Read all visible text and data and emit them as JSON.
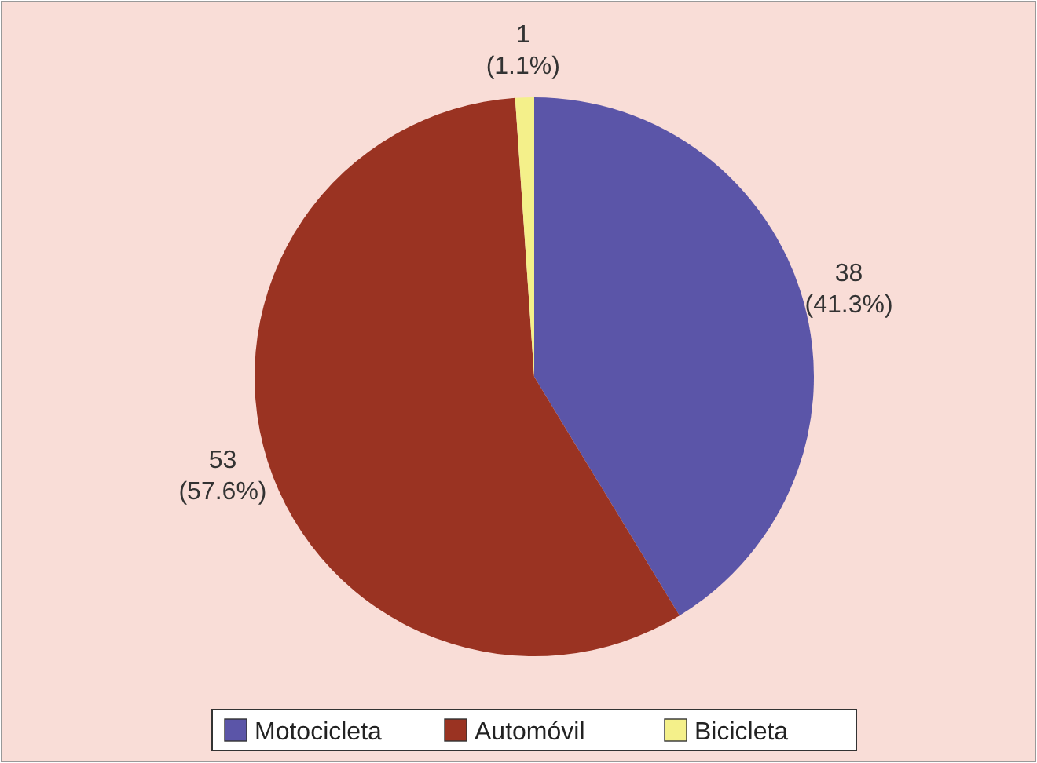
{
  "chart_data": {
    "type": "pie",
    "categories": [
      "Motocicleta",
      "Automóvil",
      "Bicicleta"
    ],
    "values": [
      38,
      53,
      1
    ],
    "colors": [
      "#5b55a8",
      "#9a3322",
      "#f4f08a"
    ],
    "value_labels": [
      "38\n(41.3%)",
      "53\n(57.6%)",
      "1\n(1.1%)"
    ],
    "legend": "bottom"
  }
}
